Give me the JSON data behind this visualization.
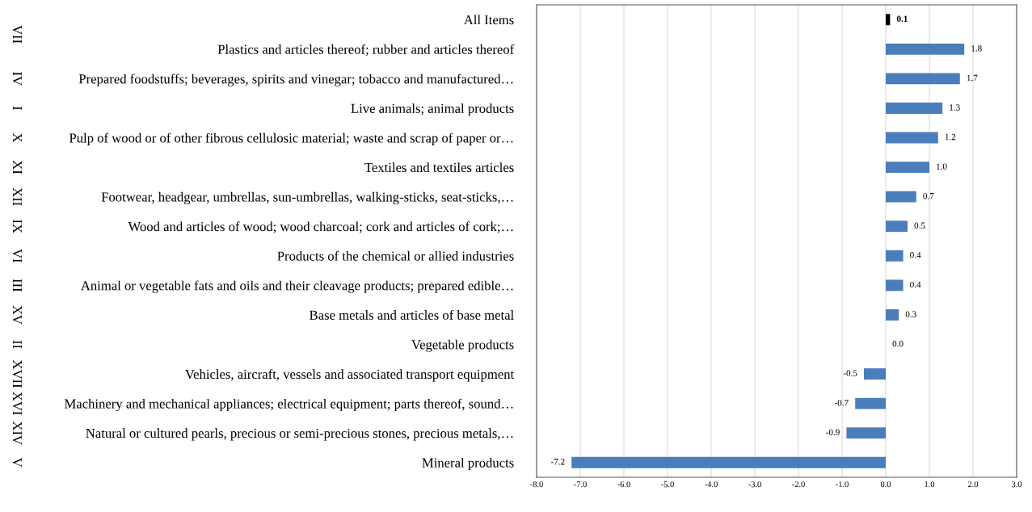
{
  "chart_data": {
    "type": "bar",
    "orientation": "horizontal",
    "categories": [
      "All Items",
      "Plastics and articles thereof; rubber and articles thereof",
      "Prepared foodstuffs; beverages, spirits and vinegar; tobacco and manufactured…",
      "Live animals; animal products",
      "Pulp of wood or of other fibrous cellulosic material; waste and scrap of paper or…",
      "Textiles and textiles articles",
      "Footwear, headgear, umbrellas, sun-umbrellas, walking-sticks, seat-sticks,…",
      "Wood and articles of wood; wood charcoal; cork and articles of cork;…",
      "Products of the chemical or allied industries",
      "Animal or vegetable fats and oils and their cleavage products; prepared edible…",
      "Base metals and articles of base metal",
      "Vegetable products",
      "Vehicles, aircraft, vessels and associated transport equipment",
      "Machinery and mechanical appliances; electrical equipment; parts thereof, sound…",
      "Natural or cultured pearls, precious or semi-precious stones, precious metals,…",
      "Mineral products"
    ],
    "values": [
      0.1,
      1.8,
      1.7,
      1.3,
      1.2,
      1.0,
      0.7,
      0.5,
      0.4,
      0.4,
      0.3,
      0.0,
      -0.5,
      -0.7,
      -0.9,
      -7.2
    ],
    "value_labels": [
      "0.1",
      "1.8",
      "1.7",
      "1.3",
      "1.2",
      "1.0",
      "0.7",
      "0.5",
      "0.4",
      "0.4",
      "0.3",
      "0.0",
      "-0.5",
      "-0.7",
      "-0.9",
      "-7.2"
    ],
    "colors": [
      "#000000",
      "#4a7ebb",
      "#4a7ebb",
      "#4a7ebb",
      "#4a7ebb",
      "#4a7ebb",
      "#4a7ebb",
      "#4a7ebb",
      "#4a7ebb",
      "#4a7ebb",
      "#4a7ebb",
      "#4a7ebb",
      "#4a7ebb",
      "#4a7ebb",
      "#4a7ebb",
      "#4a7ebb"
    ],
    "xlim": [
      -8,
      3
    ],
    "xticks": [
      {
        "value": -8,
        "label": "-8.0"
      },
      {
        "value": -7,
        "label": "-7.0"
      },
      {
        "value": -6,
        "label": "-6.0"
      },
      {
        "value": -5,
        "label": "-5.0"
      },
      {
        "value": -4,
        "label": "-4.0"
      },
      {
        "value": -3,
        "label": "-3.0"
      },
      {
        "value": -2,
        "label": "-2.0"
      },
      {
        "value": -1,
        "label": "-1.0"
      },
      {
        "value": 0,
        "label": "0.0"
      },
      {
        "value": 1,
        "label": "1.0"
      },
      {
        "value": 2,
        "label": "2.0"
      },
      {
        "value": 3,
        "label": "3.0"
      }
    ],
    "grid": "x",
    "annotations": [
      "VII",
      "IV",
      "I",
      "X",
      "XI",
      "XII",
      "IX",
      "VI",
      "III",
      "XV",
      "II",
      "XVII",
      "XVI",
      "XIV",
      "V"
    ]
  }
}
